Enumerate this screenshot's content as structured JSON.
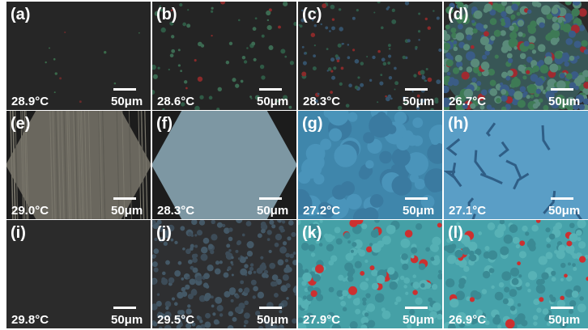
{
  "panels": [
    {
      "label": "(a)",
      "temperature": "28.9°C",
      "scale": "50μm"
    },
    {
      "label": "(b)",
      "temperature": "28.6°C",
      "scale": "50μm"
    },
    {
      "label": "(c)",
      "temperature": "28.3°C",
      "scale": "50μm"
    },
    {
      "label": "(d)",
      "temperature": "26.7°C",
      "scale": "50μm"
    },
    {
      "label": "(e)",
      "temperature": "29.0°C",
      "scale": "50μm"
    },
    {
      "label": "(f)",
      "temperature": "28.3°C",
      "scale": "50μm"
    },
    {
      "label": "(g)",
      "temperature": "27.2°C",
      "scale": "50μm"
    },
    {
      "label": "(h)",
      "temperature": "27.1°C",
      "scale": "50μm"
    },
    {
      "label": "(i)",
      "temperature": "29.8°C",
      "scale": "50μm"
    },
    {
      "label": "(j)",
      "temperature": "29.5°C",
      "scale": "50μm"
    },
    {
      "label": "(k)",
      "temperature": "27.9°C",
      "scale": "50μm"
    },
    {
      "label": "(l)",
      "temperature": "26.9°C",
      "scale": "50μm"
    }
  ]
}
